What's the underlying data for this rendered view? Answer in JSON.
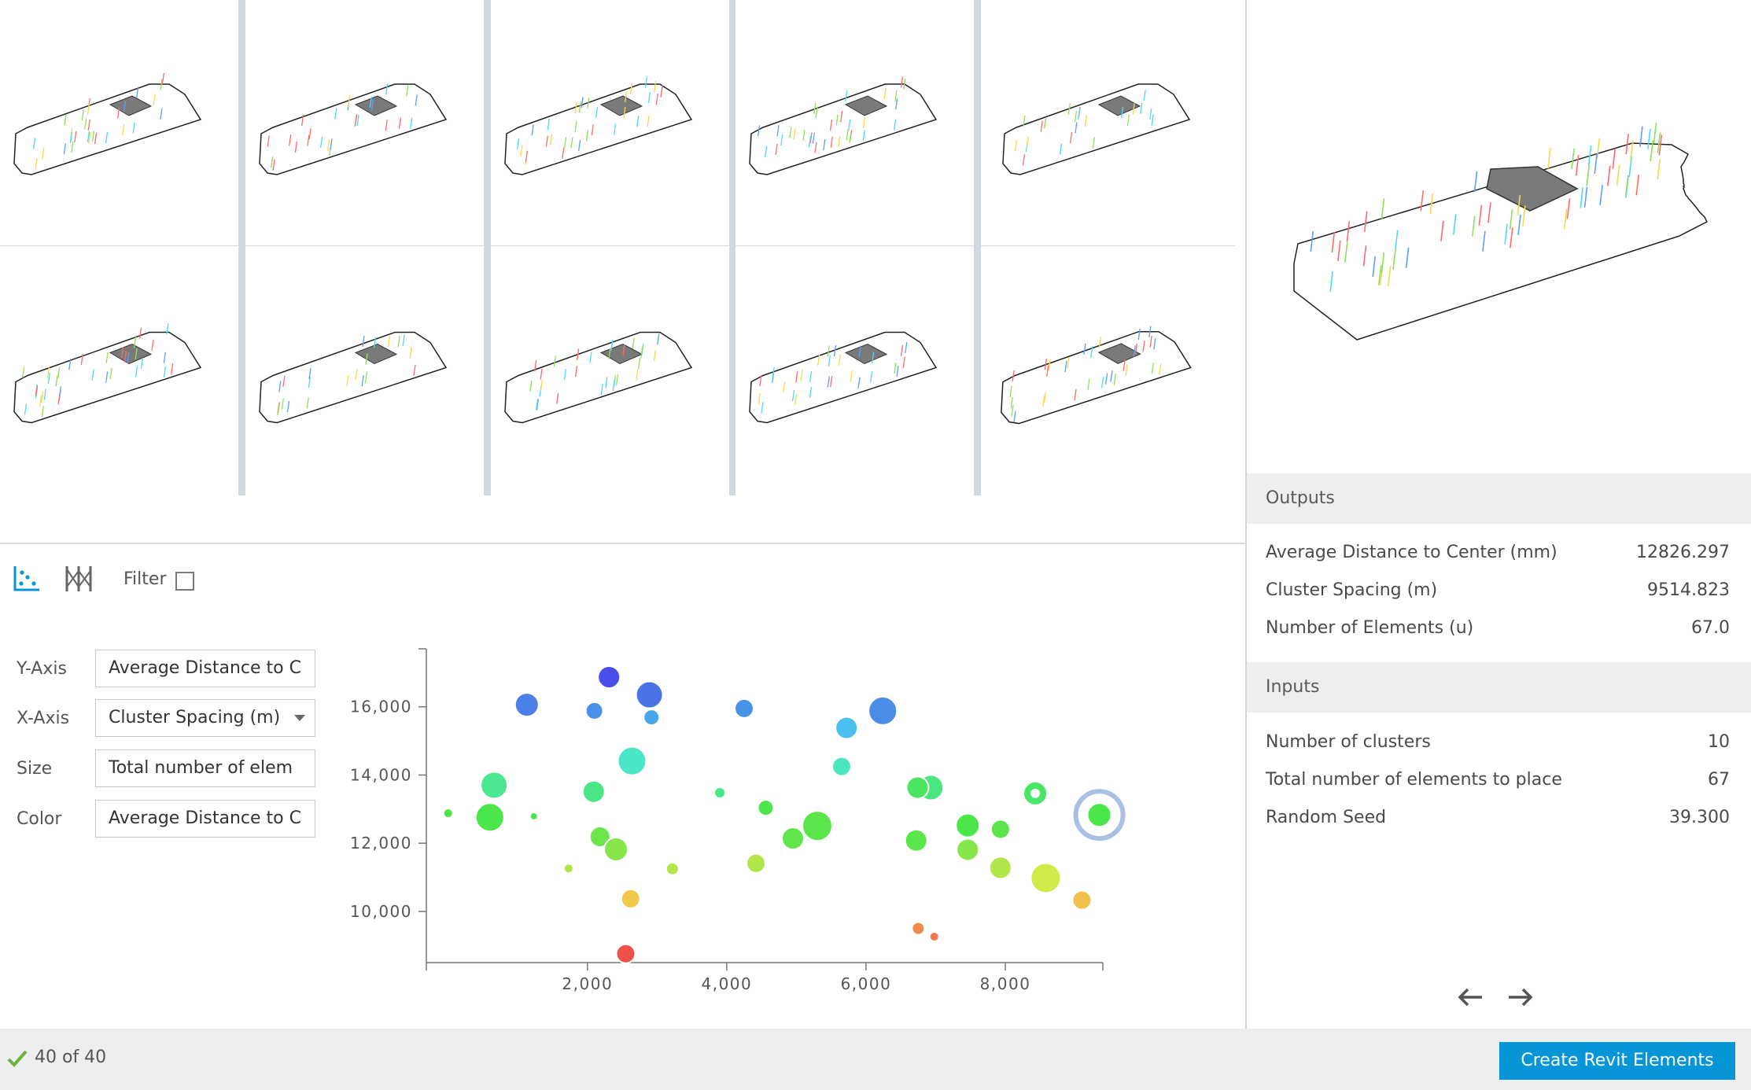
{
  "outputs": {
    "title": "Outputs",
    "rows": [
      {
        "label": "Average Distance to Center (mm)",
        "value": "12826.297"
      },
      {
        "label": "Cluster Spacing (m)",
        "value": "9514.823"
      },
      {
        "label": "Number of Elements (u)",
        "value": "67.0"
      }
    ]
  },
  "inputs": {
    "title": "Inputs",
    "rows": [
      {
        "label": "Number of clusters",
        "value": "10"
      },
      {
        "label": "Total number of elements to place",
        "value": "67"
      },
      {
        "label": "Random Seed",
        "value": "39.300"
      }
    ]
  },
  "toolbar": {
    "scatter_icon": "scatter-plot-icon",
    "parallel_icon": "parallel-coordinates-icon",
    "filter_label": "Filter"
  },
  "axes": {
    "y_label": "Y-Axis",
    "y_value": "Average Distance to C",
    "x_label": "X-Axis",
    "x_value": "Cluster Spacing (m)",
    "size_label": "Size",
    "size_value": "Total number of elem",
    "color_label": "Color",
    "color_value": "Average Distance to C"
  },
  "status": {
    "text": "40 of 40",
    "create_label": "Create Revit Elements"
  },
  "colors": {
    "accent": "#0696d7",
    "selected_ring": "#a9bfe3",
    "check": "#6cb33f"
  },
  "chart_data": {
    "type": "scatter",
    "xlabel": "",
    "ylabel": "",
    "xlim": [
      -200,
      9400
    ],
    "ylim": [
      8500,
      17700
    ],
    "xticks": [
      2000,
      4000,
      6000,
      8000
    ],
    "xtick_labels": [
      "2,000",
      "4,000",
      "6,000",
      "8,000"
    ],
    "yticks": [
      10000,
      12000,
      14000,
      16000
    ],
    "ytick_labels": [
      "10,000",
      "12,000",
      "14,000",
      "16,000"
    ],
    "grid": false,
    "points": [
      {
        "x": 2310,
        "y": 16870,
        "r": 14,
        "color": "#4a4de8"
      },
      {
        "x": 1130,
        "y": 16060,
        "r": 15,
        "color": "#4a80e8"
      },
      {
        "x": 2890,
        "y": 16350,
        "r": 17,
        "color": "#4a73e6"
      },
      {
        "x": 2100,
        "y": 15880,
        "r": 11,
        "color": "#4a90e8"
      },
      {
        "x": 2920,
        "y": 15690,
        "r": 10,
        "color": "#4aa6ea"
      },
      {
        "x": 4250,
        "y": 15950,
        "r": 12,
        "color": "#4a92e8"
      },
      {
        "x": 6240,
        "y": 15880,
        "r": 18,
        "color": "#4a8ce8"
      },
      {
        "x": 5720,
        "y": 15380,
        "r": 14,
        "color": "#4ac0ee"
      },
      {
        "x": 2640,
        "y": 14410,
        "r": 18,
        "color": "#4ae6c8"
      },
      {
        "x": 5650,
        "y": 14250,
        "r": 12,
        "color": "#4ae6c0"
      },
      {
        "x": 660,
        "y": 13700,
        "r": 17,
        "color": "#4ae690"
      },
      {
        "x": 2090,
        "y": 13510,
        "r": 14,
        "color": "#4ae686"
      },
      {
        "x": 3900,
        "y": 13480,
        "r": 7,
        "color": "#4ae680"
      },
      {
        "x": 6930,
        "y": 13630,
        "r": 16,
        "color": "#4ae680"
      },
      {
        "x": 6740,
        "y": 13630,
        "r": 14,
        "color": "#4ae660"
      },
      {
        "x": 8430,
        "y": 13460,
        "r": 15,
        "color": "#4ae666"
      },
      {
        "x": 0,
        "y": 12880,
        "r": 6,
        "color": "#4ae64a"
      },
      {
        "x": 600,
        "y": 12760,
        "r": 18,
        "color": "#4ae64a"
      },
      {
        "x": 1230,
        "y": 12790,
        "r": 5,
        "color": "#4ae64a"
      },
      {
        "x": 4560,
        "y": 13040,
        "r": 10,
        "color": "#4ae64a"
      },
      {
        "x": 5300,
        "y": 12510,
        "r": 19,
        "color": "#5ae64a"
      },
      {
        "x": 4950,
        "y": 12140,
        "r": 14,
        "color": "#60e64a"
      },
      {
        "x": 2180,
        "y": 12190,
        "r": 13,
        "color": "#6ae64a"
      },
      {
        "x": 2410,
        "y": 11820,
        "r": 15,
        "color": "#86e64a"
      },
      {
        "x": 7460,
        "y": 12520,
        "r": 15,
        "color": "#4ae64a"
      },
      {
        "x": 7930,
        "y": 12410,
        "r": 12,
        "color": "#5ae64a"
      },
      {
        "x": 6720,
        "y": 12080,
        "r": 14,
        "color": "#5ae64a"
      },
      {
        "x": 7460,
        "y": 11810,
        "r": 14,
        "color": "#86e64a"
      },
      {
        "x": 9350,
        "y": 12830,
        "r": 15,
        "color": "#4ae64a"
      },
      {
        "x": 1730,
        "y": 11260,
        "r": 6,
        "color": "#b0e64a"
      },
      {
        "x": 3220,
        "y": 11250,
        "r": 8,
        "color": "#b0e64a"
      },
      {
        "x": 4420,
        "y": 11410,
        "r": 12,
        "color": "#b0e64a"
      },
      {
        "x": 7930,
        "y": 11280,
        "r": 14,
        "color": "#b0e64a"
      },
      {
        "x": 8580,
        "y": 10980,
        "r": 19,
        "color": "#d0ea4a"
      },
      {
        "x": 2620,
        "y": 10370,
        "r": 12,
        "color": "#f0c84a"
      },
      {
        "x": 9100,
        "y": 10330,
        "r": 12,
        "color": "#f0c04a"
      },
      {
        "x": 6750,
        "y": 9500,
        "r": 8,
        "color": "#f08a4a"
      },
      {
        "x": 6980,
        "y": 9260,
        "r": 6,
        "color": "#f0784a"
      },
      {
        "x": 2550,
        "y": 8760,
        "r": 12,
        "color": "#f0504a"
      },
      {
        "x": 8430,
        "y": 13460,
        "r": 5,
        "color": "#ffffff"
      }
    ],
    "selected": {
      "x": 9350,
      "y": 12830
    }
  }
}
